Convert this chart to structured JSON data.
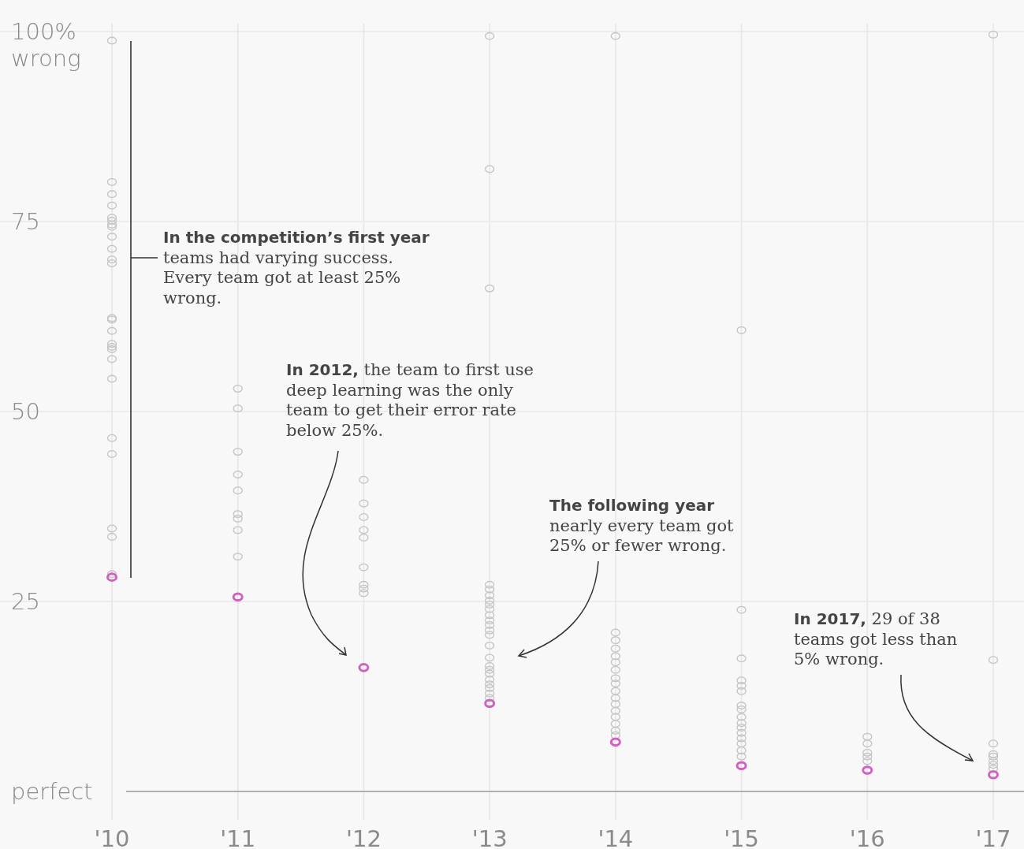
{
  "chart_data": {
    "type": "scatter",
    "categories": [
      "'10",
      "'11",
      "'12",
      "'13",
      "'14",
      "'15",
      "'16",
      "'17"
    ],
    "ylim": [
      0,
      100
    ],
    "yticks": [
      {
        "value": 0,
        "label": "perfect"
      },
      25,
      50,
      75,
      {
        "value": 100,
        "label": "100%\nwrong"
      }
    ],
    "grid": true,
    "marker": "circle",
    "series": [
      {
        "color": "#c4c4c4",
        "x": [
          "'10",
          "'10",
          "'10",
          "'10",
          "'10",
          "'10",
          "'10",
          "'10",
          "'10",
          "'10",
          "'10",
          "'10",
          "'10",
          "'10",
          "'10",
          "'10",
          "'10",
          "'10",
          "'10",
          "'10",
          "'10",
          "'10",
          "'10",
          "'10",
          "'10",
          "'11",
          "'11",
          "'11",
          "'11",
          "'11",
          "'11",
          "'11",
          "'11",
          "'11",
          "'12",
          "'12",
          "'12",
          "'12",
          "'12",
          "'12",
          "'12",
          "'12",
          "'12",
          "'13",
          "'13",
          "'13",
          "'13",
          "'13",
          "'13",
          "'13",
          "'13",
          "'13",
          "'13",
          "'13",
          "'13",
          "'13",
          "'13",
          "'13",
          "'13",
          "'13",
          "'13",
          "'13",
          "'13",
          "'13",
          "'13",
          "'13",
          "'13",
          "'14",
          "'14",
          "'14",
          "'14",
          "'14",
          "'14",
          "'14",
          "'14",
          "'14",
          "'14",
          "'14",
          "'14",
          "'14",
          "'14",
          "'14",
          "'14",
          "'14",
          "'15",
          "'15",
          "'15",
          "'15",
          "'15",
          "'15",
          "'15",
          "'15",
          "'15",
          "'15",
          "'15",
          "'15",
          "'15",
          "'15",
          "'15",
          "'15",
          "'16",
          "'16",
          "'16",
          "'16",
          "'16",
          "'17",
          "'17",
          "'17",
          "'17",
          "'17",
          "'17",
          "'17",
          "'17"
        ],
        "values": [
          98.8,
          80.2,
          78.6,
          77.1,
          75.5,
          75.1,
          74.6,
          74.3,
          73.0,
          71.4,
          70.0,
          69.5,
          62.3,
          62.1,
          60.6,
          58.9,
          58.5,
          58.2,
          56.9,
          54.3,
          46.5,
          44.4,
          34.6,
          33.5,
          28.6,
          53.0,
          50.4,
          44.7,
          41.7,
          39.6,
          36.5,
          35.9,
          34.4,
          30.9,
          41.0,
          37.9,
          36.1,
          34.4,
          33.4,
          29.5,
          27.2,
          26.7,
          26.1,
          99.4,
          81.9,
          66.2,
          27.2,
          26.6,
          25.8,
          25.1,
          24.6,
          24.0,
          23.2,
          22.5,
          21.9,
          21.2,
          20.6,
          19.2,
          17.6,
          16.5,
          16.0,
          15.5,
          14.7,
          14.1,
          13.6,
          12.9,
          12.3,
          99.4,
          20.9,
          19.9,
          18.8,
          17.8,
          17.0,
          16.0,
          14.9,
          14.2,
          13.2,
          12.3,
          11.5,
          10.6,
          9.8,
          8.9,
          8.0,
          7.4,
          60.7,
          23.9,
          17.5,
          14.6,
          13.9,
          13.2,
          11.3,
          10.8,
          9.8,
          9.0,
          8.4,
          7.7,
          7.0,
          6.3,
          5.4,
          4.6,
          7.2,
          6.3,
          5.1,
          4.6,
          4.0,
          99.6,
          17.3,
          6.3,
          4.9,
          4.6,
          4.0,
          3.5,
          3.0
        ]
      },
      {
        "color": "#d35fc0",
        "x": [
          "'10",
          "'11",
          "'12",
          "'13",
          "'14",
          "'15",
          "'16",
          "'17"
        ],
        "values": [
          28.2,
          25.6,
          16.3,
          11.6,
          6.5,
          3.4,
          2.8,
          2.2
        ]
      }
    ],
    "annotations": [
      "In the competition’s first year\nteams had varying success.\nEvery team got at least 25%\nwrong.",
      "In 2012, the team to first use\ndeep learning was the only\nteam to get their error rate\nbelow 25%.",
      "The following year\nnearly every team got\n25% or fewer wrong.",
      "In 2017, 29 of 38\nteams got less than\n5% wrong."
    ]
  }
}
